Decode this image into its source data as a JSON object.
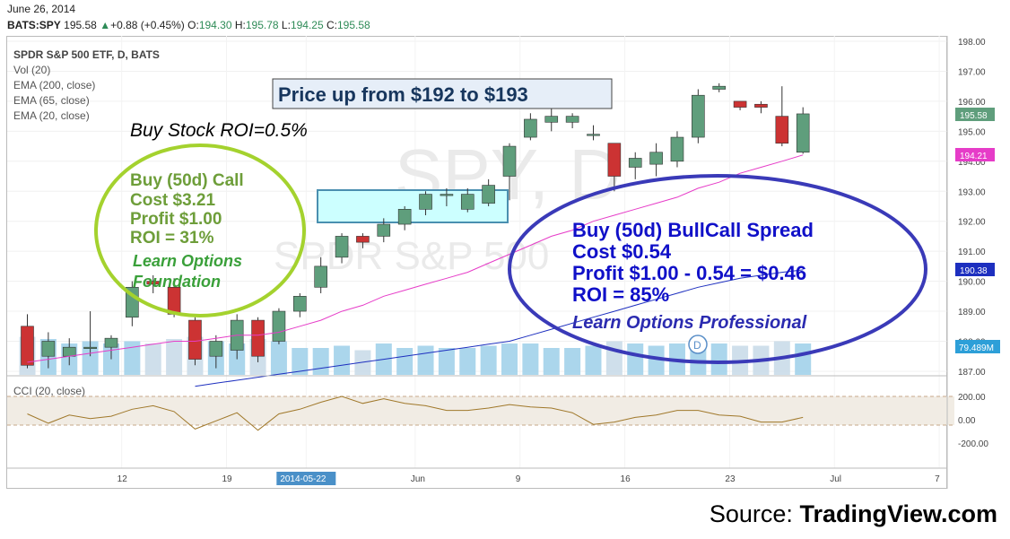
{
  "header": {
    "date": "June 26, 2014",
    "symbol": "BATS:SPY",
    "last": "195.58",
    "change": "+0.88 (+0.45%)",
    "open_label": "O:",
    "open": "194.30",
    "high_label": "H:",
    "high": "195.78",
    "low_label": "L:",
    "low": "194.25",
    "close_label": "C:",
    "close": "195.58"
  },
  "studies": {
    "title": "SPDR S&P 500 ETF, D, BATS",
    "vol": "Vol (20)",
    "ema200": "EMA (200, close)",
    "ema65": "EMA (65, close)",
    "ema20": "EMA (20, close)",
    "cci": "CCI (20, close)"
  },
  "watermark": {
    "big": "SPY, D",
    "small": "SPDR S&P 500"
  },
  "annotations": {
    "price_box": "Price up from $192 to $193",
    "stock_roi": "Buy Stock ROI=0.5%",
    "call_title": "Buy (50d) Call",
    "call_cost": "Cost $3.21",
    "call_profit": "Profit $1.00",
    "call_roi": "ROI = 31%",
    "call_link1": "Learn Options",
    "call_link2": "Foundation",
    "spread_title": "Buy (50d) BullCall Spread",
    "spread_cost": "Cost $0.54",
    "spread_profit": "Profit $1.00 - 0.54 = $0.46",
    "spread_roi": "ROI = 85%",
    "spread_link": "Learn Options Professional",
    "dividend_marker": "D"
  },
  "price_labels": {
    "last": "195.58",
    "ema20": "194.21",
    "ema65": "190.38",
    "volume": "79.489M"
  },
  "colors": {
    "up": "#5f9e7c",
    "down": "#cc3333",
    "ema20": "#e63cc8",
    "ema65": "#1d2fbf",
    "cci": "#a0782a",
    "green_ellipse": "#9acd32",
    "blue_ellipse": "#3a3ab8",
    "volume": "#9ccfe9"
  },
  "source": {
    "prefix": "Source: ",
    "brand": "TradingView.com"
  },
  "chart_data": {
    "type": "candlestick",
    "y_ticks": [
      "198.00",
      "197.00",
      "196.00",
      "195.00",
      "194.00",
      "193.00",
      "192.00",
      "191.00",
      "190.00",
      "189.00",
      "188.00",
      "187.00"
    ],
    "ylim": [
      186.8,
      198.0
    ],
    "cci_ticks": [
      "200.00",
      "0.00",
      "-200.00"
    ],
    "x_ticks": [
      {
        "i": 4.5,
        "label": "12"
      },
      {
        "i": 9.5,
        "label": "19"
      },
      {
        "i": 13.3,
        "label": "2014-05-22"
      },
      {
        "i": 18.5,
        "label": "Jun"
      },
      {
        "i": 23.5,
        "label": "9"
      },
      {
        "i": 28.5,
        "label": "16"
      },
      {
        "i": 33.5,
        "label": "23"
      },
      {
        "i": 38.5,
        "label": "Jul"
      },
      {
        "i": 43.5,
        "label": "7"
      }
    ],
    "candles": [
      {
        "o": 188.5,
        "h": 188.9,
        "l": 187.1,
        "c": 187.2
      },
      {
        "o": 187.5,
        "h": 188.3,
        "l": 187.1,
        "c": 188.0
      },
      {
        "o": 187.5,
        "h": 188.1,
        "l": 187.2,
        "c": 187.8
      },
      {
        "o": 187.8,
        "h": 189.0,
        "l": 187.5,
        "c": 187.8
      },
      {
        "o": 187.8,
        "h": 188.2,
        "l": 187.4,
        "c": 188.1
      },
      {
        "o": 188.8,
        "h": 190.0,
        "l": 188.5,
        "c": 189.8
      },
      {
        "o": 190.0,
        "h": 190.2,
        "l": 189.6,
        "c": 189.9
      },
      {
        "o": 189.8,
        "h": 190.1,
        "l": 188.8,
        "c": 188.9
      },
      {
        "o": 188.7,
        "h": 188.8,
        "l": 187.2,
        "c": 187.4
      },
      {
        "o": 187.5,
        "h": 188.2,
        "l": 187.1,
        "c": 188.0
      },
      {
        "o": 187.7,
        "h": 188.9,
        "l": 187.4,
        "c": 188.7
      },
      {
        "o": 188.7,
        "h": 188.8,
        "l": 187.3,
        "c": 187.5
      },
      {
        "o": 188.0,
        "h": 189.1,
        "l": 187.9,
        "c": 189.0
      },
      {
        "o": 189.0,
        "h": 189.6,
        "l": 188.8,
        "c": 189.5
      },
      {
        "o": 189.8,
        "h": 190.8,
        "l": 189.6,
        "c": 190.5
      },
      {
        "o": 190.8,
        "h": 191.6,
        "l": 190.6,
        "c": 191.5
      },
      {
        "o": 191.5,
        "h": 191.6,
        "l": 191.1,
        "c": 191.3
      },
      {
        "o": 191.5,
        "h": 192.1,
        "l": 191.3,
        "c": 191.9
      },
      {
        "o": 191.9,
        "h": 192.5,
        "l": 191.7,
        "c": 192.4
      },
      {
        "o": 192.4,
        "h": 193.0,
        "l": 192.2,
        "c": 192.9
      },
      {
        "o": 192.9,
        "h": 193.1,
        "l": 192.5,
        "c": 192.9
      },
      {
        "o": 192.4,
        "h": 193.1,
        "l": 192.3,
        "c": 192.9
      },
      {
        "o": 192.6,
        "h": 193.4,
        "l": 192.5,
        "c": 193.2
      },
      {
        "o": 193.5,
        "h": 194.6,
        "l": 192.7,
        "c": 194.5
      },
      {
        "o": 194.8,
        "h": 195.6,
        "l": 194.7,
        "c": 195.4
      },
      {
        "o": 195.3,
        "h": 195.8,
        "l": 195.0,
        "c": 195.5
      },
      {
        "o": 195.3,
        "h": 195.6,
        "l": 195.1,
        "c": 195.5
      },
      {
        "o": 194.9,
        "h": 195.2,
        "l": 194.7,
        "c": 194.9
      },
      {
        "o": 194.6,
        "h": 194.6,
        "l": 193.0,
        "c": 193.5
      },
      {
        "o": 193.8,
        "h": 194.3,
        "l": 193.4,
        "c": 194.1
      },
      {
        "o": 193.9,
        "h": 194.6,
        "l": 193.5,
        "c": 194.3
      },
      {
        "o": 194.0,
        "h": 195.0,
        "l": 193.8,
        "c": 194.8
      },
      {
        "o": 194.8,
        "h": 196.4,
        "l": 194.6,
        "c": 196.2
      },
      {
        "o": 196.4,
        "h": 196.6,
        "l": 196.3,
        "c": 196.5
      },
      {
        "o": 196.0,
        "h": 196.0,
        "l": 195.7,
        "c": 195.8
      },
      {
        "o": 195.9,
        "h": 196.0,
        "l": 195.6,
        "c": 195.8
      },
      {
        "o": 195.5,
        "h": 196.5,
        "l": 194.5,
        "c": 194.6
      },
      {
        "o": 194.3,
        "h": 195.8,
        "l": 194.25,
        "c": 195.58
      }
    ],
    "ema20": [
      187.3,
      187.4,
      187.5,
      187.6,
      187.7,
      187.8,
      187.9,
      188.0,
      188.0,
      188.1,
      188.2,
      188.2,
      188.3,
      188.5,
      188.7,
      189.0,
      189.2,
      189.5,
      189.7,
      189.9,
      190.1,
      190.3,
      190.6,
      190.9,
      191.2,
      191.5,
      191.7,
      192.0,
      192.2,
      192.4,
      192.6,
      192.8,
      193.1,
      193.3,
      193.6,
      193.8,
      194.0,
      194.21
    ],
    "ema65": [
      186.5,
      186.6,
      186.7,
      186.8,
      186.9,
      187.0,
      187.1,
      187.2,
      187.3,
      187.4,
      187.5,
      187.6,
      187.7,
      187.8,
      187.9,
      188.0,
      188.2,
      188.4,
      188.6,
      188.8,
      189.0,
      189.2,
      189.4,
      189.6,
      189.8,
      189.95,
      190.1,
      190.2,
      190.3,
      190.38
    ],
    "volume_rel": [
      0.85,
      0.8,
      0.7,
      0.75,
      0.7,
      0.75,
      0.7,
      0.8,
      0.85,
      0.75,
      0.7,
      0.8,
      0.75,
      0.6,
      0.6,
      0.65,
      0.55,
      0.7,
      0.6,
      0.65,
      0.6,
      0.6,
      0.65,
      0.7,
      0.7,
      0.6,
      0.6,
      0.65,
      0.75,
      0.7,
      0.65,
      0.7,
      0.75,
      0.7,
      0.65,
      0.65,
      0.75,
      0.7
    ],
    "cci": [
      50,
      -30,
      40,
      10,
      30,
      90,
      120,
      70,
      -80,
      -10,
      60,
      -90,
      50,
      90,
      150,
      200,
      140,
      180,
      140,
      120,
      80,
      80,
      100,
      130,
      110,
      100,
      60,
      -40,
      -20,
      20,
      40,
      80,
      80,
      40,
      30,
      -20,
      -20,
      20
    ]
  }
}
